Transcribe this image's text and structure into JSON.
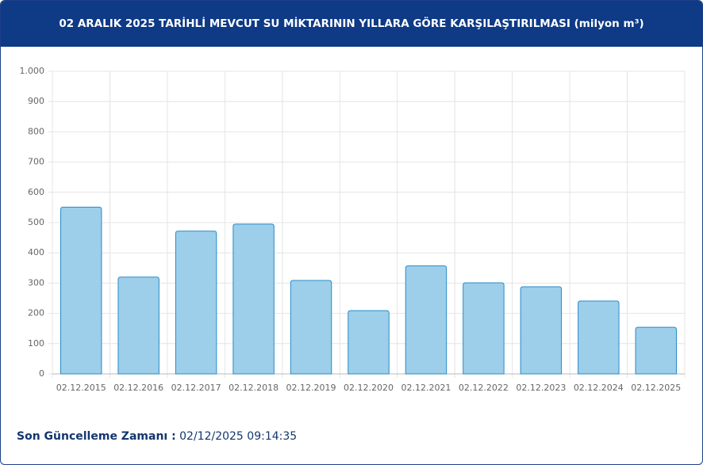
{
  "chart_data": {
    "type": "bar",
    "title": "02 ARALIK 2025 TARİHLİ MEVCUT SU MİKTARININ YILLARA GÖRE KARŞILAŞTIRILMASI (milyon m³)",
    "categories": [
      "02.12.2015",
      "02.12.2016",
      "02.12.2017",
      "02.12.2018",
      "02.12.2019",
      "02.12.2020",
      "02.12.2021",
      "02.12.2022",
      "02.12.2023",
      "02.12.2024",
      "02.12.2025"
    ],
    "values": [
      551,
      320,
      472,
      495,
      309,
      209,
      357,
      301,
      288,
      241,
      154
    ],
    "color": "#9dcfea",
    "edge_color": "#2a8bc7",
    "ylim": [
      0,
      1000
    ],
    "yticks": [
      0,
      100,
      200,
      300,
      400,
      500,
      600,
      700,
      800,
      900,
      {
        "value": 1000,
        "label": "1.000"
      }
    ],
    "grid": true
  },
  "footer": {
    "label": "Son Güncelleme Zamanı :",
    "value": "02/12/2025 09:14:35"
  }
}
